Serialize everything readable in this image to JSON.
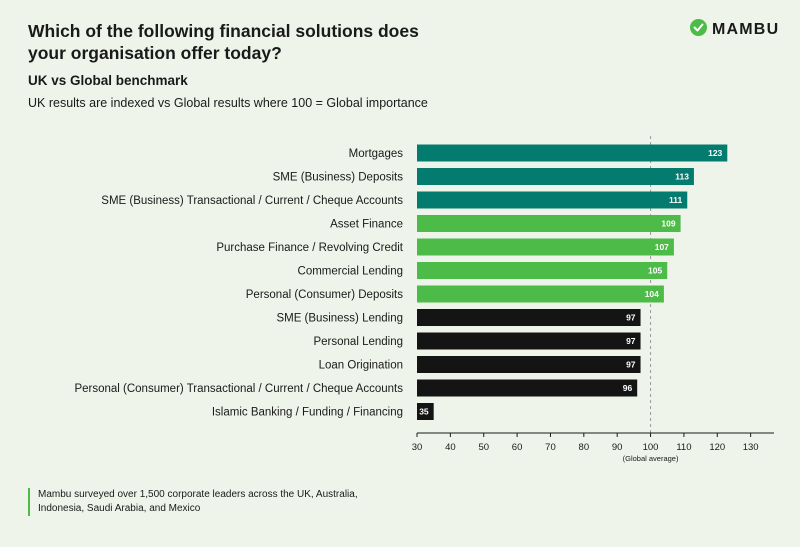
{
  "header": {
    "title": "Which of the following financial solutions does your organisation offer today?",
    "subtitle": "UK vs Global benchmark",
    "note": "UK results are indexed vs Global results where 100 = Global importance"
  },
  "logo": {
    "text": "MAMBU",
    "icon": "mambu-check-icon",
    "color": "#4cbb47"
  },
  "footer": {
    "text": "Mambu surveyed over 1,500 corporate leaders across the UK, Australia, Indonesia, Saudi Arabia, and Mexico"
  },
  "colors": {
    "teal": "#047b6f",
    "green": "#4cbb47",
    "black": "#141414",
    "background": "#eef4ea"
  },
  "chart_data": {
    "type": "bar",
    "orientation": "horizontal",
    "categories": [
      "Mortgages",
      "SME (Business) Deposits",
      "SME (Business) Transactional / Current / Cheque Accounts",
      "Asset Finance",
      "Purchase Finance / Revolving Credit",
      "Commercial Lending",
      "Personal (Consumer) Deposits",
      "SME (Business) Lending",
      "Personal Lending",
      "Loan Origination",
      "Personal (Consumer) Transactional / Current / Cheque Accounts",
      "Islamic Banking / Funding / Financing"
    ],
    "values": [
      123,
      113,
      111,
      109,
      107,
      105,
      104,
      97,
      97,
      97,
      96,
      35
    ],
    "bar_colors": [
      "#047b6f",
      "#047b6f",
      "#047b6f",
      "#4cbb47",
      "#4cbb47",
      "#4cbb47",
      "#4cbb47",
      "#141414",
      "#141414",
      "#141414",
      "#141414",
      "#141414"
    ],
    "xlim": [
      30,
      137
    ],
    "xticks": [
      30,
      40,
      50,
      60,
      70,
      80,
      90,
      100,
      110,
      120,
      130
    ],
    "reference": {
      "value": 100,
      "label": "(Global average)"
    },
    "grid": false
  }
}
